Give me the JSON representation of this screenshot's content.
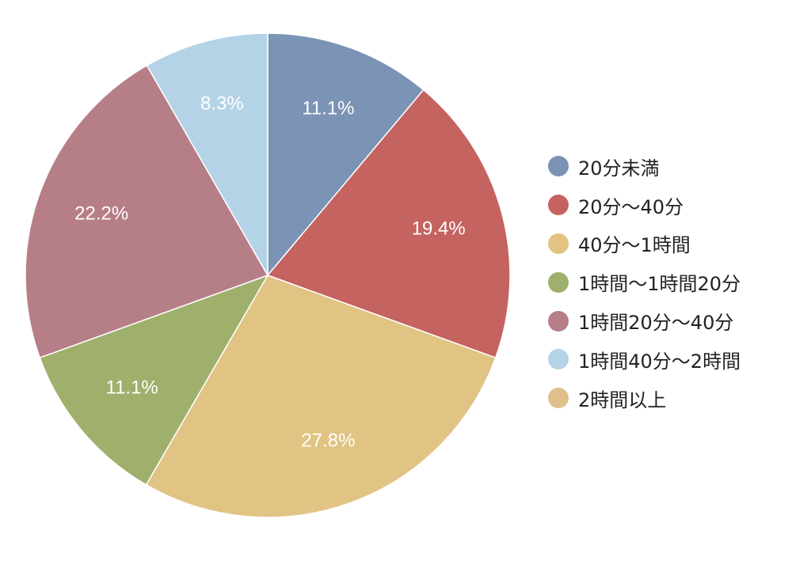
{
  "chart_data": {
    "type": "pie",
    "title": "",
    "legend_placement": "right",
    "slices": [
      {
        "label": "20分未満",
        "value": 11.1,
        "value_label": "11.1%",
        "color": "#7b93b5"
      },
      {
        "label": "20分〜40分",
        "value": 19.4,
        "value_label": "19.4%",
        "color": "#c4635f"
      },
      {
        "label": "40分〜1時間",
        "value": 27.8,
        "value_label": "27.8%",
        "color": "#e1c384"
      },
      {
        "label": "1時間〜1時間20分",
        "value": 11.1,
        "value_label": "11.1%",
        "color": "#9eb06b"
      },
      {
        "label": "1時間20分〜40分",
        "value": 22.2,
        "value_label": "22.2%",
        "color": "#b67e87"
      },
      {
        "label": "1時間40分〜2時間",
        "value": 8.3,
        "value_label": "8.3%",
        "color": "#b4d3e7"
      }
    ],
    "legend": [
      {
        "label": "20分未満",
        "color": "#7b93b5"
      },
      {
        "label": "20分〜40分",
        "color": "#c4635f"
      },
      {
        "label": "40分〜1時間",
        "color": "#e1c384"
      },
      {
        "label": "1時間〜1時間20分",
        "color": "#9eb06b"
      },
      {
        "label": "1時間20分〜40分",
        "color": "#b67e87"
      },
      {
        "label": "1時間40分〜2時間",
        "color": "#b4d3e7"
      },
      {
        "label": "2時間以上",
        "color": "#dfc08a"
      }
    ]
  }
}
